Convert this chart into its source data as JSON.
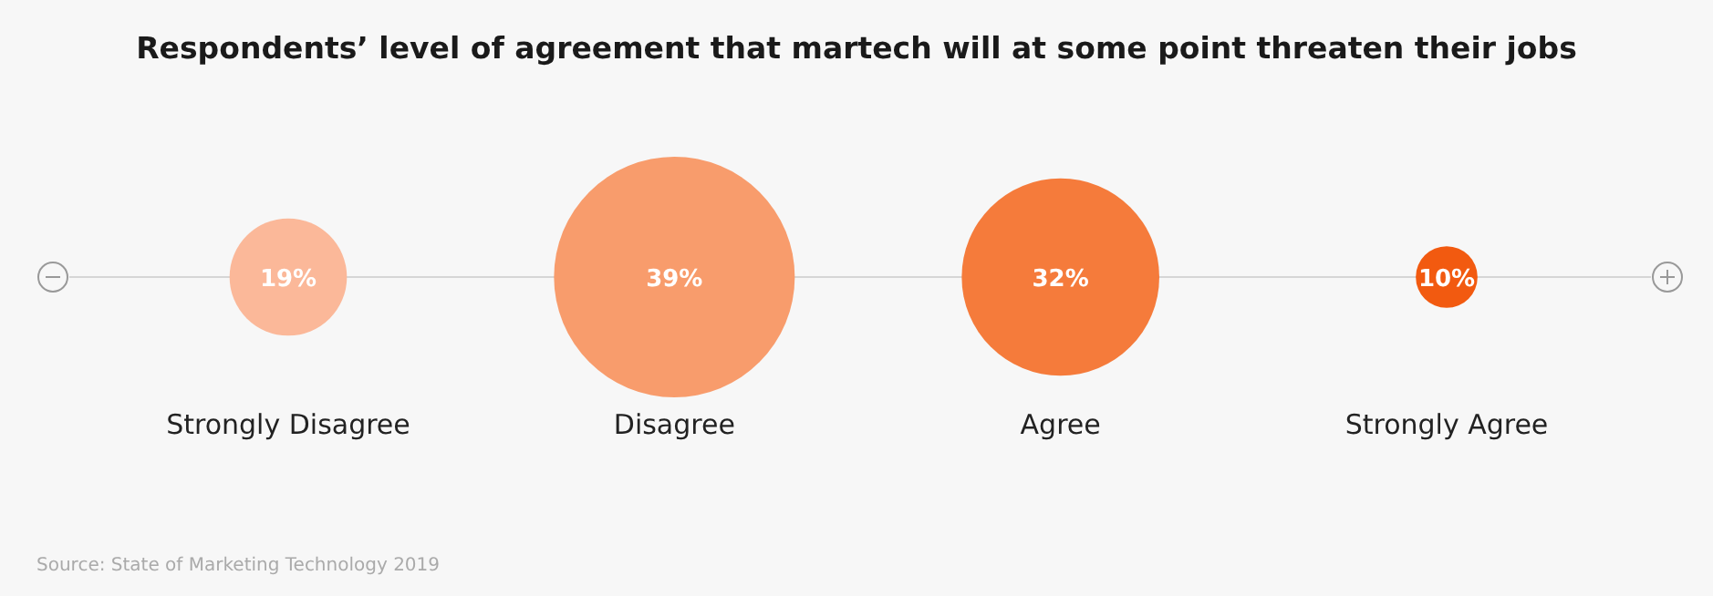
{
  "chart_data": {
    "type": "other",
    "title": "Respondents’ level of agreement that martech will at some point threaten their jobs",
    "categories": [
      "Strongly Disagree",
      "Disagree",
      "Agree",
      "Strongly Agree"
    ],
    "values": [
      19,
      39,
      32,
      10
    ],
    "colors": [
      "#fbb899",
      "#f89c6c",
      "#f57b3b",
      "#f25a10"
    ],
    "value_labels": [
      "19%",
      "39%",
      "32%",
      "10%"
    ],
    "annotations": [
      "Source: State of Marketing Technology 2019"
    ]
  }
}
